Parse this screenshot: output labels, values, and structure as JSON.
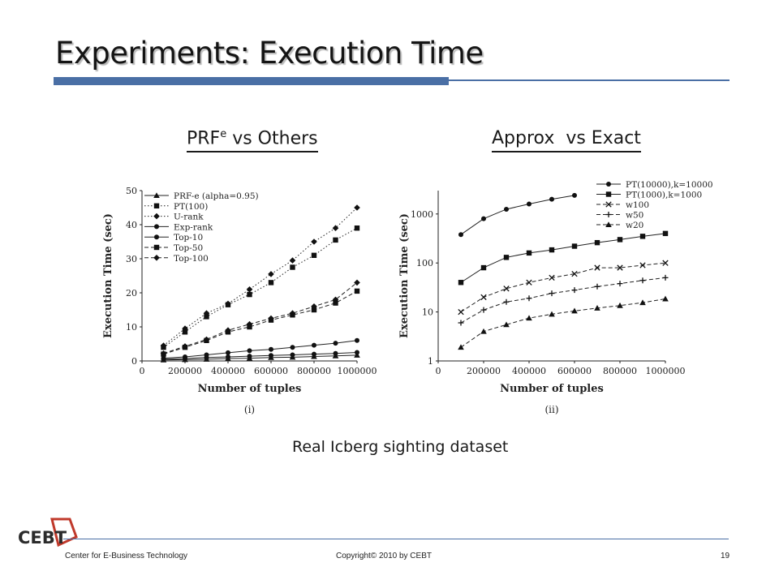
{
  "slide": {
    "title": "Experiments: Execution Time",
    "subtitle_left_main": "PRF",
    "subtitle_left_sup": "e",
    "subtitle_left_rest": " vs Others",
    "subtitle_right": "Approx  vs Exact",
    "dataset_caption": "Real Icberg sighting dataset"
  },
  "footer": {
    "left": "Center for E-Business Technology",
    "center": "Copyright© 2010 by CEBT",
    "page": "19",
    "logo_text": "CEBT"
  },
  "chart_data": [
    {
      "type": "line",
      "panel_label": "(i)",
      "xlabel": "Number of tuples",
      "ylabel": "Execution Time (sec)",
      "xlim": [
        0,
        1000000
      ],
      "ylim": [
        0,
        50
      ],
      "x_ticks": [
        0,
        200000,
        400000,
        600000,
        800000,
        1000000
      ],
      "x_tick_labels": [
        "0",
        "200000",
        "400000",
        "600000",
        "800000",
        "1000000"
      ],
      "y_ticks": [
        0,
        10,
        20,
        30,
        40,
        50
      ],
      "y_tick_labels": [
        "0",
        "10",
        "20",
        "30",
        "40",
        "50"
      ],
      "legend_position": "top-left",
      "x": [
        100000,
        200000,
        300000,
        400000,
        500000,
        600000,
        700000,
        800000,
        900000,
        1000000
      ],
      "series": [
        {
          "name": "PRF-e (alpha=0.95)",
          "marker": "triangle",
          "dash": "solid",
          "values": [
            0.3,
            0.4,
            0.5,
            0.7,
            0.8,
            1.0,
            1.1,
            1.3,
            1.5,
            1.7
          ]
        },
        {
          "name": "PT(100)",
          "marker": "square",
          "dash": "dotted",
          "values": [
            4.0,
            8.5,
            13.0,
            16.5,
            19.5,
            23.0,
            27.5,
            31.0,
            35.5,
            39.0
          ]
        },
        {
          "name": "U-rank",
          "marker": "diamond",
          "dash": "dotted",
          "values": [
            4.5,
            9.5,
            14.0,
            16.8,
            21.0,
            25.5,
            29.5,
            35.0,
            39.0,
            45.0
          ]
        },
        {
          "name": "Exp-rank",
          "marker": "circle",
          "dash": "solid",
          "values": [
            0.5,
            0.7,
            1.0,
            1.2,
            1.4,
            1.6,
            1.8,
            2.0,
            2.2,
            2.5
          ]
        },
        {
          "name": "Top-10",
          "marker": "circle",
          "dash": "solid",
          "values": [
            0.8,
            1.2,
            1.8,
            2.4,
            3.0,
            3.4,
            4.0,
            4.6,
            5.2,
            6.0
          ]
        },
        {
          "name": "Top-50",
          "marker": "square",
          "dash": "dashed",
          "values": [
            2.0,
            4.0,
            6.0,
            8.5,
            10.0,
            12.0,
            13.5,
            15.0,
            17.0,
            20.5
          ]
        },
        {
          "name": "Top-100",
          "marker": "diamond",
          "dash": "dashed",
          "values": [
            2.2,
            4.3,
            6.3,
            9.0,
            10.8,
            12.5,
            14.0,
            16.0,
            18.0,
            23.0
          ]
        }
      ]
    },
    {
      "type": "line",
      "panel_label": "(ii)",
      "xlabel": "Number of tuples",
      "ylabel": "Execution Time (sec)",
      "xlim": [
        0,
        1000000
      ],
      "ylim": [
        1,
        3000
      ],
      "y_scale": "log",
      "x_ticks": [
        0,
        200000,
        400000,
        600000,
        800000,
        1000000
      ],
      "x_tick_labels": [
        "0",
        "200000",
        "400000",
        "600000",
        "800000",
        "1000000"
      ],
      "y_ticks": [
        1,
        10,
        100,
        1000
      ],
      "y_tick_labels": [
        "1",
        "10",
        "100",
        "1000"
      ],
      "legend_position": "top-right",
      "series": [
        {
          "name": "PT(10000),k=10000",
          "marker": "circle",
          "dash": "solid",
          "x": [
            100000,
            200000,
            300000,
            400000,
            500000,
            600000
          ],
          "values": [
            380,
            800,
            1250,
            1600,
            2000,
            2400
          ]
        },
        {
          "name": "PT(1000),k=1000",
          "marker": "square",
          "dash": "solid",
          "x": [
            100000,
            200000,
            300000,
            400000,
            500000,
            600000,
            700000,
            800000,
            900000,
            1000000
          ],
          "values": [
            40,
            80,
            130,
            160,
            185,
            220,
            260,
            300,
            350,
            400
          ]
        },
        {
          "name": "w100",
          "marker": "x",
          "dash": "dashed",
          "x": [
            100000,
            200000,
            300000,
            400000,
            500000,
            600000,
            700000,
            800000,
            900000,
            1000000
          ],
          "values": [
            10,
            20,
            30,
            40,
            50,
            60,
            80,
            80,
            90,
            100
          ]
        },
        {
          "name": "w50",
          "marker": "plus",
          "dash": "dashed",
          "x": [
            100000,
            200000,
            300000,
            400000,
            500000,
            600000,
            700000,
            800000,
            900000,
            1000000
          ],
          "values": [
            6,
            11,
            16,
            19,
            24,
            28,
            33,
            38,
            44,
            50
          ]
        },
        {
          "name": "w20",
          "marker": "triangle",
          "dash": "dashed",
          "x": [
            100000,
            200000,
            300000,
            400000,
            500000,
            600000,
            700000,
            800000,
            900000,
            1000000
          ],
          "values": [
            1.9,
            4.0,
            5.5,
            7.5,
            9.0,
            10.5,
            12.0,
            13.5,
            15.5,
            18.5
          ]
        }
      ]
    }
  ]
}
